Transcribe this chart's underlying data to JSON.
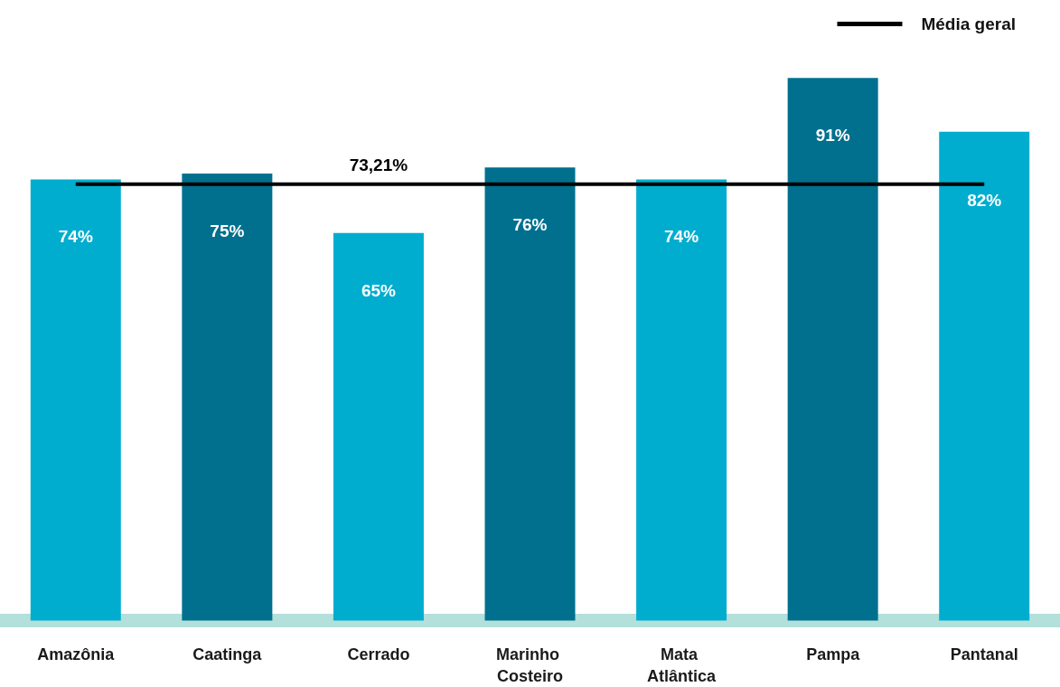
{
  "chart_data": {
    "type": "bar",
    "categories": [
      "Amazônia",
      "Caatinga",
      "Cerrado",
      "Marinho Costeiro",
      "Mata Atlântica",
      "Pampa",
      "Pantanal"
    ],
    "series": [
      {
        "colors": [
          "#00adcf",
          "#00708e",
          "#00adcf",
          "#00708e",
          "#00adcf",
          "#00708e",
          "#00adcf"
        ],
        "values": [
          74,
          75,
          65,
          76,
          74,
          91,
          82
        ],
        "value_labels": [
          "74%",
          "75%",
          "65%",
          "76%",
          "74%",
          "91%",
          "82%"
        ]
      },
      {
        "type": "line",
        "name": "Média geral",
        "color": "#000000",
        "values": [
          73.21,
          73.21,
          73.21,
          73.21,
          73.21,
          73.21,
          73.21
        ],
        "value_labels": [
          null,
          null,
          "73,21%",
          null,
          null,
          null,
          null
        ]
      }
    ],
    "ylim": [
      0,
      100
    ],
    "tick_labels": "x",
    "grid": false,
    "legend": "top right",
    "marker": "none",
    "line_style": "solid"
  }
}
